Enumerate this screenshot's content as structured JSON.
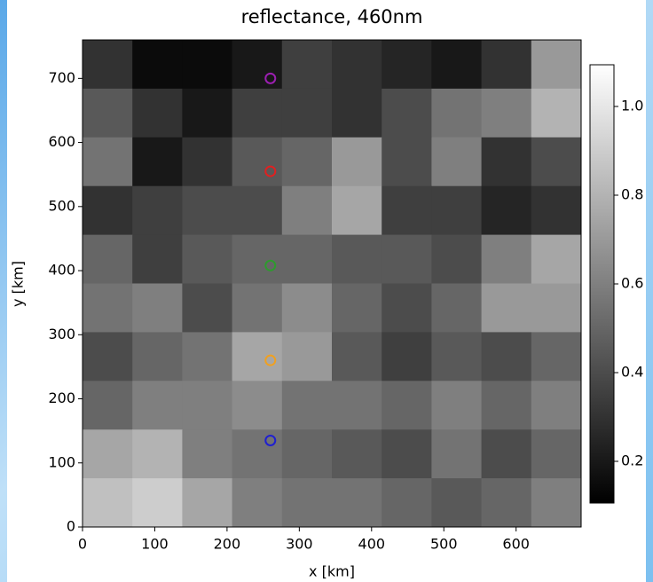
{
  "chart_data": {
    "type": "image",
    "title": "reflectance, 460nm",
    "x_label": "x [km]",
    "y_label": "y [km]",
    "xlim": [
      0,
      690
    ],
    "ylim": [
      0,
      760
    ],
    "xticks": [
      0,
      100,
      200,
      300,
      400,
      500,
      600
    ],
    "yticks": [
      0,
      100,
      200,
      300,
      400,
      500,
      600,
      700
    ],
    "x_edges": [
      0,
      69,
      138,
      207,
      276,
      345,
      414,
      483,
      552,
      621,
      690
    ],
    "y_edges": [
      760,
      684,
      608,
      532,
      456,
      380,
      304,
      228,
      152,
      76,
      0
    ],
    "z": [
      [
        0.3,
        0.15,
        0.15,
        0.2,
        0.35,
        0.3,
        0.25,
        0.2,
        0.3,
        0.7
      ],
      [
        0.45,
        0.3,
        0.2,
        0.35,
        0.35,
        0.3,
        0.4,
        0.55,
        0.6,
        0.8
      ],
      [
        0.55,
        0.2,
        0.3,
        0.45,
        0.5,
        0.7,
        0.4,
        0.6,
        0.3,
        0.4
      ],
      [
        0.3,
        0.35,
        0.4,
        0.4,
        0.6,
        0.75,
        0.35,
        0.35,
        0.25,
        0.3
      ],
      [
        0.5,
        0.35,
        0.45,
        0.5,
        0.5,
        0.45,
        0.45,
        0.4,
        0.6,
        0.75
      ],
      [
        0.55,
        0.6,
        0.4,
        0.55,
        0.65,
        0.5,
        0.4,
        0.5,
        0.7,
        0.7
      ],
      [
        0.4,
        0.5,
        0.55,
        0.75,
        0.7,
        0.45,
        0.35,
        0.45,
        0.4,
        0.5
      ],
      [
        0.5,
        0.6,
        0.6,
        0.65,
        0.55,
        0.55,
        0.5,
        0.6,
        0.5,
        0.6
      ],
      [
        0.75,
        0.8,
        0.6,
        0.55,
        0.5,
        0.45,
        0.4,
        0.55,
        0.4,
        0.5
      ],
      [
        0.85,
        0.9,
        0.75,
        0.6,
        0.55,
        0.55,
        0.5,
        0.45,
        0.5,
        0.6
      ]
    ],
    "clim": [
      0.106,
      1.094
    ],
    "cticks": [
      0.2,
      0.4,
      0.6,
      {
        "value": 0.8,
        "label": "0.8"
      },
      {
        "value": 1,
        "label": "1.0"
      }
    ],
    "markers": {
      "x": [
        260,
        260,
        260,
        260,
        260
      ],
      "y": [
        700,
        555,
        408,
        260,
        135
      ],
      "colors": [
        "#9b1fb0",
        "#e02020",
        "#2e9a2e",
        "#f0a020",
        "#2020d0"
      ]
    }
  }
}
